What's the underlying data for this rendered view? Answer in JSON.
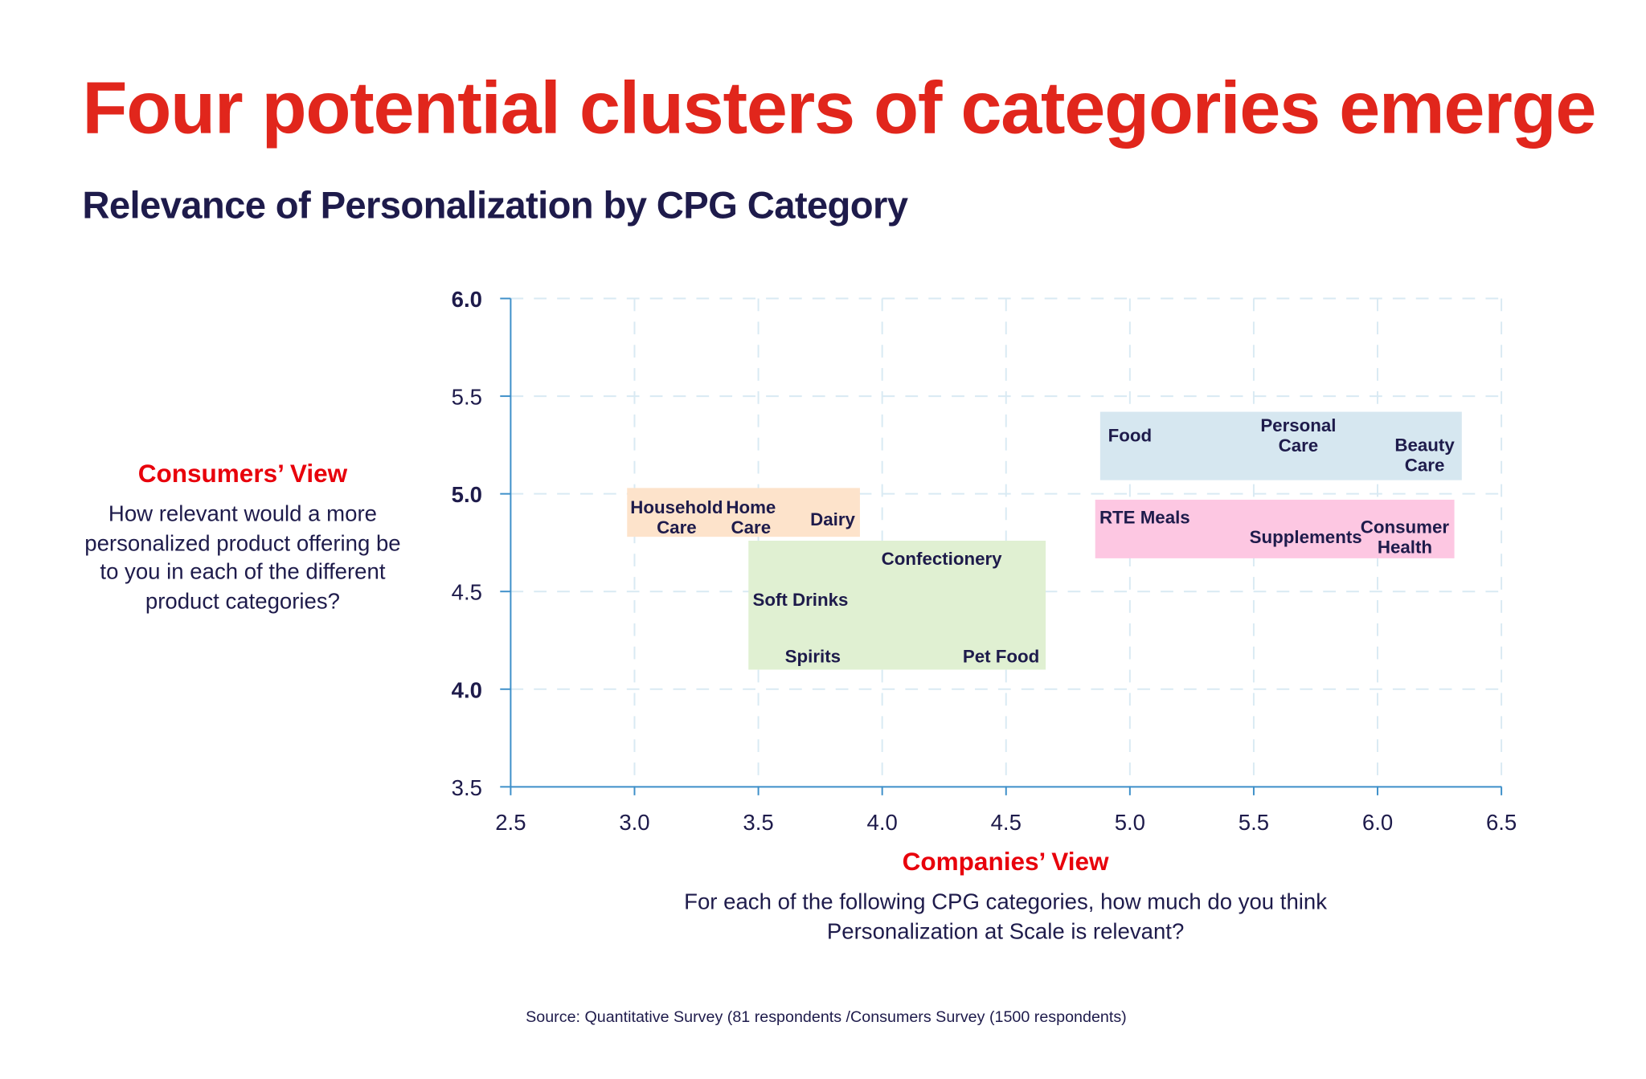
{
  "title": "Four potential clusters of categories emerge",
  "subtitle": "Relevance of Personalization by CPG Category",
  "y_view": {
    "heading": "Consumers’ View",
    "question": "How relevant would a more personalized product offering be to you in each of the different product categories?"
  },
  "x_view": {
    "heading": "Companies’ View",
    "question": "For each of the following CPG categories, how much do you think Personalization at Scale is relevant?"
  },
  "source": "Source: Quantitative Survey (81 respondents /Consumers Survey (1500 respondents)",
  "chart_data": {
    "type": "scatter",
    "title": "Relevance of Personalization by CPG Category",
    "xlabel": "Companies’ View",
    "ylabel": "Consumers’ View",
    "xlim": [
      2.5,
      6.5
    ],
    "ylim": [
      3.5,
      6.0
    ],
    "x_ticks": [
      "2.5",
      "3.0",
      "3.5",
      "4.0",
      "4.5",
      "5.0",
      "5.5",
      "6.0",
      "6.5"
    ],
    "y_ticks": [
      "3.5",
      "4.0",
      "4.5",
      "5.0",
      "5.5",
      "6.0"
    ],
    "y_ticks_bold": [
      "4.0",
      "5.0",
      "6.0"
    ],
    "grid": true,
    "clusters": [
      {
        "color": "#fde3cb",
        "x": [
          2.97,
          3.91
        ],
        "y": [
          4.78,
          5.03
        ]
      },
      {
        "color": "#e0f0d2",
        "x": [
          3.46,
          4.66
        ],
        "y": [
          4.1,
          4.76
        ]
      },
      {
        "color": "#d6e7f0",
        "x": [
          4.88,
          6.34
        ],
        "y": [
          5.07,
          5.42
        ]
      },
      {
        "color": "#fdc7e2",
        "x": [
          4.86,
          6.31
        ],
        "y": [
          4.67,
          4.97
        ]
      }
    ],
    "points": [
      {
        "label": [
          "Household",
          "Care"
        ],
        "x": 3.17,
        "y": 4.88
      },
      {
        "label": [
          "Home",
          "Care"
        ],
        "x": 3.47,
        "y": 4.88
      },
      {
        "label": [
          "Dairy"
        ],
        "x": 3.8,
        "y": 4.87
      },
      {
        "label": [
          "Confectionery"
        ],
        "x": 4.24,
        "y": 4.67
      },
      {
        "label": [
          "Soft Drinks"
        ],
        "x": 3.67,
        "y": 4.46
      },
      {
        "label": [
          "Spirits"
        ],
        "x": 3.72,
        "y": 4.17
      },
      {
        "label": [
          "Pet Food"
        ],
        "x": 4.48,
        "y": 4.17
      },
      {
        "label": [
          "Food"
        ],
        "x": 5.0,
        "y": 5.3
      },
      {
        "label": [
          "Personal",
          "Care"
        ],
        "x": 5.68,
        "y": 5.3
      },
      {
        "label": [
          "Beauty",
          "Care"
        ],
        "x": 6.19,
        "y": 5.2
      },
      {
        "label": [
          "RTE Meals"
        ],
        "x": 5.06,
        "y": 4.88
      },
      {
        "label": [
          "Supplements"
        ],
        "x": 5.71,
        "y": 4.78
      },
      {
        "label": [
          "Consumer",
          "Health"
        ],
        "x": 6.11,
        "y": 4.78
      }
    ],
    "axis_color": "#3d8fc9",
    "grid_color": "#d9eaf3",
    "label_color": "#1e1b4b"
  }
}
